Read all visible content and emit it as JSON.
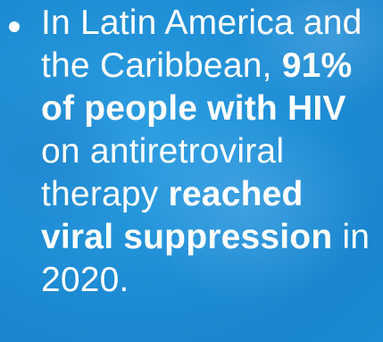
{
  "slide": {
    "bullet_text": {
      "part1": "In Latin America and the Caribbean, ",
      "bold1": "91% of people with HIV",
      "part2": " on antiretroviral therapy ",
      "bold2": "reached viral suppression",
      "part3": " in 2020."
    },
    "colors": {
      "background": "#1f8fd6",
      "text": "#ffffff"
    }
  }
}
